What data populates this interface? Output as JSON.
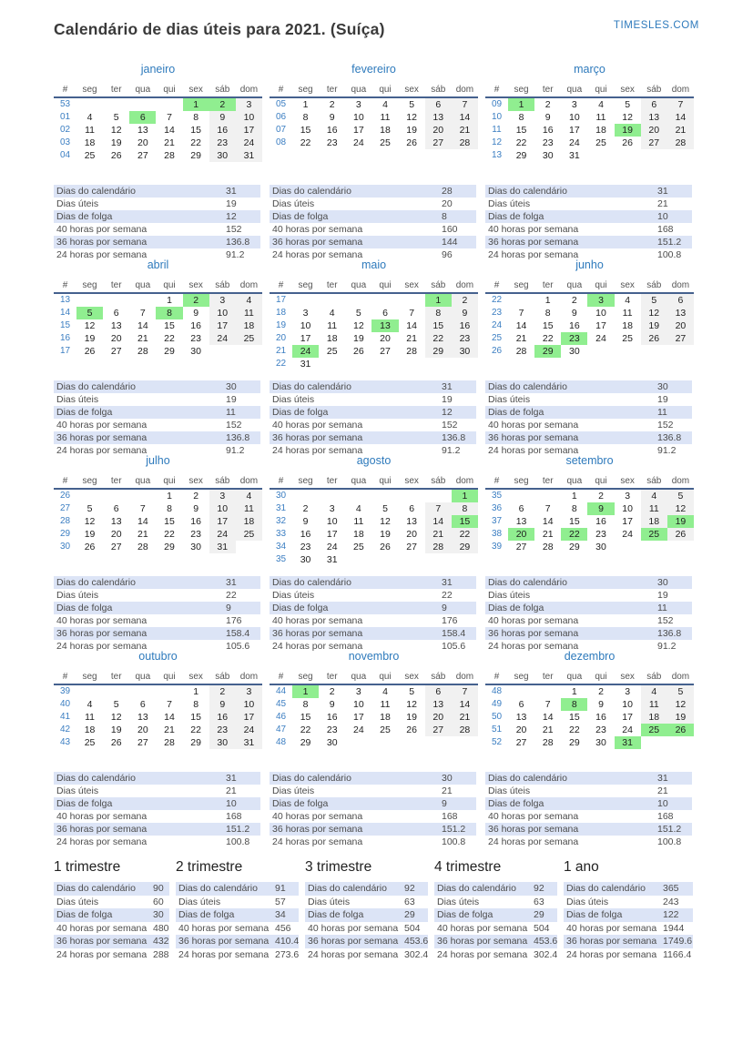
{
  "header": {
    "title": "Calendário de dias úteis para 2021. (Suíça)",
    "site": "TIMESLES.COM"
  },
  "colors": {
    "accent_blue": "#2e7abc",
    "holiday_green": "#90ee90",
    "weekend_gray": "#f1f1f1",
    "stats_row_blue": "#dce4f6",
    "header_rule": "#45618e"
  },
  "weekday_headers": [
    "#",
    "seg",
    "ter",
    "qua",
    "qui",
    "sex",
    "sáb",
    "dom"
  ],
  "stats_labels": [
    "Dias do calendário",
    "Dias úteis",
    "Dias de folga",
    "40 horas por semana",
    "36 horas por semana",
    "24 horas por semana"
  ],
  "months": [
    {
      "name": "janeiro",
      "holidays": [
        1,
        2,
        6
      ],
      "stats": [
        31,
        19,
        12,
        152,
        136.8,
        91.2
      ],
      "weeks": [
        [
          "53",
          [
            "",
            "",
            "",
            "",
            "1",
            "2",
            "3"
          ]
        ],
        [
          "01",
          [
            "4",
            "5",
            "6",
            "7",
            "8",
            "9",
            "10"
          ]
        ],
        [
          "02",
          [
            "11",
            "12",
            "13",
            "14",
            "15",
            "16",
            "17"
          ]
        ],
        [
          "03",
          [
            "18",
            "19",
            "20",
            "21",
            "22",
            "23",
            "24"
          ]
        ],
        [
          "04",
          [
            "25",
            "26",
            "27",
            "28",
            "29",
            "30",
            "31"
          ]
        ]
      ]
    },
    {
      "name": "fevereiro",
      "holidays": [],
      "stats": [
        28,
        20,
        8,
        160,
        144,
        96
      ],
      "weeks": [
        [
          "05",
          [
            "1",
            "2",
            "3",
            "4",
            "5",
            "6",
            "7"
          ]
        ],
        [
          "06",
          [
            "8",
            "9",
            "10",
            "11",
            "12",
            "13",
            "14"
          ]
        ],
        [
          "07",
          [
            "15",
            "16",
            "17",
            "18",
            "19",
            "20",
            "21"
          ]
        ],
        [
          "08",
          [
            "22",
            "23",
            "24",
            "25",
            "26",
            "27",
            "28"
          ]
        ]
      ]
    },
    {
      "name": "março",
      "holidays": [
        1,
        19
      ],
      "stats": [
        31,
        21,
        10,
        168,
        151.2,
        100.8
      ],
      "weeks": [
        [
          "09",
          [
            "1",
            "2",
            "3",
            "4",
            "5",
            "6",
            "7"
          ]
        ],
        [
          "10",
          [
            "8",
            "9",
            "10",
            "11",
            "12",
            "13",
            "14"
          ]
        ],
        [
          "11",
          [
            "15",
            "16",
            "17",
            "18",
            "19",
            "20",
            "21"
          ]
        ],
        [
          "12",
          [
            "22",
            "23",
            "24",
            "25",
            "26",
            "27",
            "28"
          ]
        ],
        [
          "13",
          [
            "29",
            "30",
            "31",
            "",
            "",
            "",
            ""
          ]
        ]
      ]
    },
    {
      "name": "abril",
      "holidays": [
        2,
        5,
        8
      ],
      "stats": [
        30,
        19,
        11,
        152,
        136.8,
        91.2
      ],
      "weeks": [
        [
          "13",
          [
            "",
            "",
            "",
            "1",
            "2",
            "3",
            "4"
          ]
        ],
        [
          "14",
          [
            "5",
            "6",
            "7",
            "8",
            "9",
            "10",
            "11"
          ]
        ],
        [
          "15",
          [
            "12",
            "13",
            "14",
            "15",
            "16",
            "17",
            "18"
          ]
        ],
        [
          "16",
          [
            "19",
            "20",
            "21",
            "22",
            "23",
            "24",
            "25"
          ]
        ],
        [
          "17",
          [
            "26",
            "27",
            "28",
            "29",
            "30",
            "",
            ""
          ]
        ]
      ]
    },
    {
      "name": "maio",
      "holidays": [
        1,
        13,
        24
      ],
      "stats": [
        31,
        19,
        12,
        152,
        136.8,
        91.2
      ],
      "weeks": [
        [
          "17",
          [
            "",
            "",
            "",
            "",
            "",
            "1",
            "2"
          ]
        ],
        [
          "18",
          [
            "3",
            "4",
            "5",
            "6",
            "7",
            "8",
            "9"
          ]
        ],
        [
          "19",
          [
            "10",
            "11",
            "12",
            "13",
            "14",
            "15",
            "16"
          ]
        ],
        [
          "20",
          [
            "17",
            "18",
            "19",
            "20",
            "21",
            "22",
            "23"
          ]
        ],
        [
          "21",
          [
            "24",
            "25",
            "26",
            "27",
            "28",
            "29",
            "30"
          ]
        ],
        [
          "22",
          [
            "31",
            "",
            "",
            "",
            "",
            "",
            ""
          ]
        ]
      ]
    },
    {
      "name": "junho",
      "holidays": [
        3,
        23,
        29
      ],
      "stats": [
        30,
        19,
        11,
        152,
        136.8,
        91.2
      ],
      "weeks": [
        [
          "22",
          [
            "",
            "1",
            "2",
            "3",
            "4",
            "5",
            "6"
          ]
        ],
        [
          "23",
          [
            "7",
            "8",
            "9",
            "10",
            "11",
            "12",
            "13"
          ]
        ],
        [
          "24",
          [
            "14",
            "15",
            "16",
            "17",
            "18",
            "19",
            "20"
          ]
        ],
        [
          "25",
          [
            "21",
            "22",
            "23",
            "24",
            "25",
            "26",
            "27"
          ]
        ],
        [
          "26",
          [
            "28",
            "29",
            "30",
            "",
            "",
            "",
            ""
          ]
        ]
      ]
    },
    {
      "name": "julho",
      "holidays": [],
      "stats": [
        31,
        22,
        9,
        176,
        158.4,
        105.6
      ],
      "weeks": [
        [
          "26",
          [
            "",
            "",
            "",
            "1",
            "2",
            "3",
            "4"
          ]
        ],
        [
          "27",
          [
            "5",
            "6",
            "7",
            "8",
            "9",
            "10",
            "11"
          ]
        ],
        [
          "28",
          [
            "12",
            "13",
            "14",
            "15",
            "16",
            "17",
            "18"
          ]
        ],
        [
          "29",
          [
            "19",
            "20",
            "21",
            "22",
            "23",
            "24",
            "25"
          ]
        ],
        [
          "30",
          [
            "26",
            "27",
            "28",
            "29",
            "30",
            "31",
            ""
          ]
        ]
      ]
    },
    {
      "name": "agosto",
      "holidays": [
        1,
        15
      ],
      "stats": [
        31,
        22,
        9,
        176,
        158.4,
        105.6
      ],
      "weeks": [
        [
          "30",
          [
            "",
            "",
            "",
            "",
            "",
            "",
            "1"
          ]
        ],
        [
          "31",
          [
            "2",
            "3",
            "4",
            "5",
            "6",
            "7",
            "8"
          ]
        ],
        [
          "32",
          [
            "9",
            "10",
            "11",
            "12",
            "13",
            "14",
            "15"
          ]
        ],
        [
          "33",
          [
            "16",
            "17",
            "18",
            "19",
            "20",
            "21",
            "22"
          ]
        ],
        [
          "34",
          [
            "23",
            "24",
            "25",
            "26",
            "27",
            "28",
            "29"
          ]
        ],
        [
          "35",
          [
            "30",
            "31",
            "",
            "",
            "",
            "",
            ""
          ]
        ]
      ]
    },
    {
      "name": "setembro",
      "holidays": [
        9,
        19,
        20,
        22,
        25
      ],
      "stats": [
        30,
        19,
        11,
        152,
        136.8,
        91.2
      ],
      "weeks": [
        [
          "35",
          [
            "",
            "",
            "1",
            "2",
            "3",
            "4",
            "5"
          ]
        ],
        [
          "36",
          [
            "6",
            "7",
            "8",
            "9",
            "10",
            "11",
            "12"
          ]
        ],
        [
          "37",
          [
            "13",
            "14",
            "15",
            "16",
            "17",
            "18",
            "19"
          ]
        ],
        [
          "38",
          [
            "20",
            "21",
            "22",
            "23",
            "24",
            "25",
            "26"
          ]
        ],
        [
          "39",
          [
            "27",
            "28",
            "29",
            "30",
            "",
            "",
            ""
          ]
        ]
      ]
    },
    {
      "name": "outubro",
      "holidays": [],
      "stats": [
        31,
        21,
        10,
        168,
        151.2,
        100.8
      ],
      "weeks": [
        [
          "39",
          [
            "",
            "",
            "",
            "",
            "1",
            "2",
            "3"
          ]
        ],
        [
          "40",
          [
            "4",
            "5",
            "6",
            "7",
            "8",
            "9",
            "10"
          ]
        ],
        [
          "41",
          [
            "11",
            "12",
            "13",
            "14",
            "15",
            "16",
            "17"
          ]
        ],
        [
          "42",
          [
            "18",
            "19",
            "20",
            "21",
            "22",
            "23",
            "24"
          ]
        ],
        [
          "43",
          [
            "25",
            "26",
            "27",
            "28",
            "29",
            "30",
            "31"
          ]
        ]
      ]
    },
    {
      "name": "novembro",
      "holidays": [
        1
      ],
      "stats": [
        30,
        21,
        9,
        168,
        151.2,
        100.8
      ],
      "weeks": [
        [
          "44",
          [
            "1",
            "2",
            "3",
            "4",
            "5",
            "6",
            "7"
          ]
        ],
        [
          "45",
          [
            "8",
            "9",
            "10",
            "11",
            "12",
            "13",
            "14"
          ]
        ],
        [
          "46",
          [
            "15",
            "16",
            "17",
            "18",
            "19",
            "20",
            "21"
          ]
        ],
        [
          "47",
          [
            "22",
            "23",
            "24",
            "25",
            "26",
            "27",
            "28"
          ]
        ],
        [
          "48",
          [
            "29",
            "30",
            "",
            "",
            "",
            "",
            ""
          ]
        ]
      ]
    },
    {
      "name": "dezembro",
      "holidays": [
        8,
        25,
        26,
        31
      ],
      "stats": [
        31,
        21,
        10,
        168,
        151.2,
        100.8
      ],
      "weeks": [
        [
          "48",
          [
            "",
            "",
            "1",
            "2",
            "3",
            "4",
            "5"
          ]
        ],
        [
          "49",
          [
            "6",
            "7",
            "8",
            "9",
            "10",
            "11",
            "12"
          ]
        ],
        [
          "50",
          [
            "13",
            "14",
            "15",
            "16",
            "17",
            "18",
            "19"
          ]
        ],
        [
          "51",
          [
            "20",
            "21",
            "22",
            "23",
            "24",
            "25",
            "26"
          ]
        ],
        [
          "52",
          [
            "27",
            "28",
            "29",
            "30",
            "31",
            "",
            ""
          ]
        ]
      ]
    }
  ],
  "summaries": [
    {
      "title": "1 trimestre",
      "values": [
        90,
        60,
        30,
        480,
        432,
        288
      ]
    },
    {
      "title": "2 trimestre",
      "values": [
        91,
        57,
        34,
        456,
        410.4,
        273.6
      ]
    },
    {
      "title": "3 trimestre",
      "values": [
        92,
        63,
        29,
        504,
        453.6,
        302.4
      ]
    },
    {
      "title": "4 trimestre",
      "values": [
        92,
        63,
        29,
        504,
        453.6,
        302.4
      ]
    },
    {
      "title": "1 ano",
      "values": [
        365,
        243,
        122,
        1944,
        1749.6,
        1166.4
      ]
    }
  ]
}
